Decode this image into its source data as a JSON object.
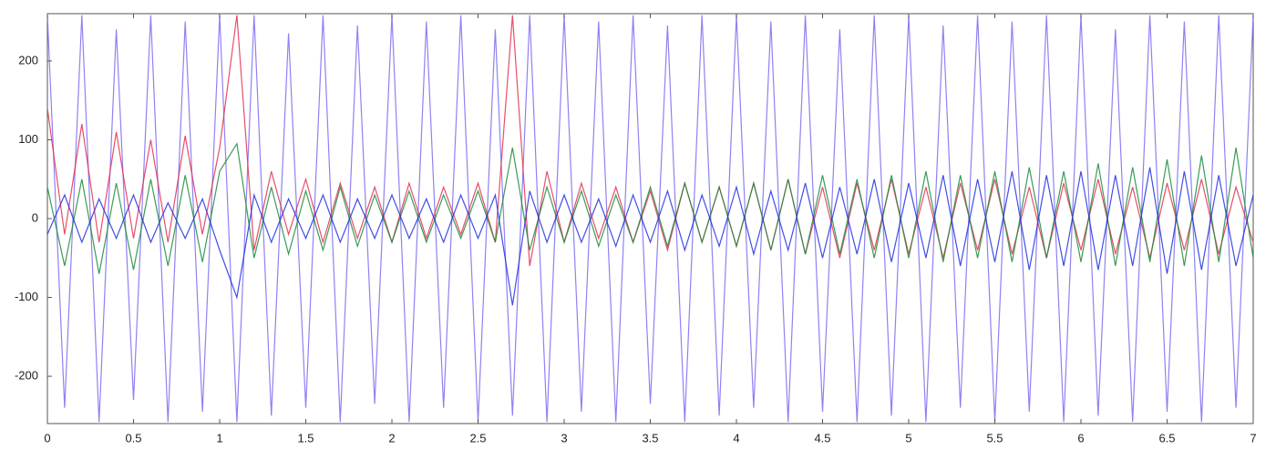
{
  "chart_data": {
    "type": "line",
    "x": [
      0,
      0.1,
      0.2,
      0.3,
      0.4,
      0.5,
      0.6,
      0.7,
      0.8,
      0.9,
      1,
      1.1,
      1.2,
      1.3,
      1.4,
      1.5,
      1.6,
      1.7,
      1.8,
      1.9,
      2,
      2.1,
      2.2,
      2.3,
      2.4,
      2.5,
      2.6,
      2.7,
      2.8,
      2.9,
      3,
      3.1,
      3.2,
      3.3,
      3.4,
      3.5,
      3.6,
      3.7,
      3.8,
      3.9,
      4,
      4.1,
      4.2,
      4.3,
      4.4,
      4.5,
      4.6,
      4.7,
      4.8,
      4.9,
      5,
      5.1,
      5.2,
      5.3,
      5.4,
      5.5,
      5.6,
      5.7,
      5.8,
      5.9,
      6,
      6.1,
      6.2,
      6.3,
      6.4,
      6.5,
      6.6,
      6.7,
      6.8,
      6.9,
      7
    ],
    "series": [
      {
        "color": "#7a6cf0",
        "values": [
          258,
          -240,
          258,
          -258,
          240,
          -230,
          258,
          -258,
          250,
          -245,
          258,
          -258,
          258,
          -250,
          235,
          -240,
          258,
          -258,
          245,
          -235,
          258,
          -258,
          250,
          -240,
          258,
          -258,
          240,
          -250,
          258,
          -258,
          258,
          -245,
          250,
          -258,
          258,
          -235,
          245,
          -258,
          258,
          -250,
          258,
          -240,
          250,
          -258,
          258,
          -245,
          240,
          -258,
          258,
          -250,
          258,
          -258,
          245,
          -240,
          258,
          -258,
          250,
          -245,
          258,
          -258,
          258,
          -250,
          240,
          -258,
          258,
          -245,
          250,
          -258,
          258,
          -240,
          258
        ]
      },
      {
        "color": "#e03050",
        "values": [
          140,
          -20,
          120,
          -30,
          110,
          -25,
          100,
          -30,
          105,
          -20,
          90,
          258,
          -40,
          60,
          -20,
          50,
          -30,
          45,
          -25,
          40,
          -30,
          45,
          -25,
          40,
          -20,
          45,
          -30,
          258,
          -60,
          60,
          -30,
          45,
          -25,
          40,
          -30,
          35,
          -40,
          45,
          -30,
          40,
          -35,
          45,
          -40,
          50,
          -45,
          40,
          -50,
          45,
          -40,
          50,
          -45,
          40,
          -50,
          45,
          -40,
          50,
          -45,
          40,
          -50,
          45,
          -40,
          50,
          -45,
          40,
          -50,
          45,
          -40,
          50,
          -45,
          40,
          -30
        ]
      },
      {
        "color": "#1a8a3a",
        "values": [
          40,
          -60,
          50,
          -70,
          45,
          -65,
          50,
          -60,
          55,
          -55,
          60,
          95,
          -50,
          40,
          -45,
          35,
          -40,
          40,
          -35,
          30,
          -30,
          35,
          -30,
          30,
          -25,
          35,
          -30,
          90,
          -40,
          40,
          -30,
          35,
          -35,
          30,
          -30,
          40,
          -35,
          45,
          -30,
          40,
          -35,
          45,
          -40,
          50,
          -45,
          55,
          -45,
          50,
          -50,
          55,
          -50,
          60,
          -55,
          55,
          -50,
          60,
          -55,
          65,
          -50,
          60,
          -55,
          70,
          -60,
          65,
          -55,
          75,
          -60,
          80,
          -55,
          90,
          -50
        ]
      },
      {
        "color": "#1f2fe0",
        "values": [
          -20,
          30,
          -30,
          25,
          -25,
          30,
          -30,
          20,
          -25,
          25,
          -40,
          -100,
          30,
          -30,
          25,
          -25,
          30,
          -30,
          25,
          -25,
          30,
          -25,
          25,
          -30,
          30,
          -25,
          30,
          -110,
          35,
          -30,
          30,
          -30,
          25,
          -35,
          30,
          -30,
          35,
          -40,
          30,
          -35,
          40,
          -45,
          35,
          -40,
          45,
          -50,
          40,
          -45,
          50,
          -55,
          45,
          -50,
          55,
          -60,
          50,
          -55,
          60,
          -65,
          55,
          -60,
          60,
          -65,
          55,
          -60,
          65,
          -70,
          60,
          -65,
          55,
          -60,
          30
        ]
      }
    ],
    "xlim": [
      0,
      7
    ],
    "xticks": [
      0,
      0.5,
      1,
      1.5,
      2,
      2.5,
      3,
      3.5,
      4,
      4.5,
      5,
      5.5,
      6,
      6.5,
      7
    ],
    "ylim": [
      -260,
      260
    ],
    "yticks": [
      -200,
      -100,
      0,
      100,
      200
    ],
    "grid": false
  }
}
